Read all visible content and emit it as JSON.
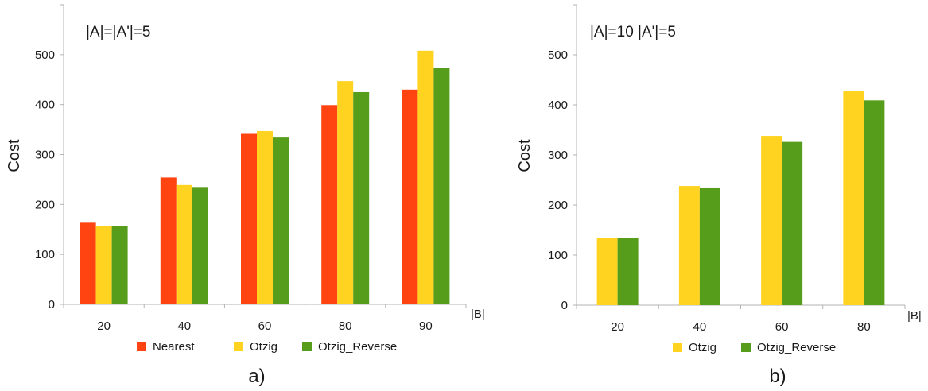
{
  "chart_data": [
    {
      "type": "bar",
      "annotation": "|A|=|A'|=5",
      "caption": "a)",
      "xlabel": "|B|",
      "ylabel": "Cost",
      "ylim": [
        0,
        600
      ],
      "yticks": [
        0,
        100,
        200,
        300,
        400,
        500
      ],
      "categories": [
        "20",
        "40",
        "60",
        "80",
        "90"
      ],
      "legend_position": "bottom",
      "grid": false,
      "series": [
        {
          "name": "Nearest",
          "color": "#ff4411",
          "values": [
            165,
            254,
            343,
            399,
            430
          ]
        },
        {
          "name": "Otzig",
          "color": "#ffd320",
          "values": [
            157,
            239,
            347,
            447,
            508
          ]
        },
        {
          "name": "Otzig_Reverse",
          "color": "#579d1c",
          "values": [
            157,
            235,
            334,
            425,
            474
          ]
        }
      ]
    },
    {
      "type": "bar",
      "annotation": "|A|=10  |A'|=5",
      "caption": "b)",
      "xlabel": "|B|",
      "ylabel": "Cost",
      "ylim": [
        0,
        600
      ],
      "yticks": [
        0,
        100,
        200,
        300,
        400,
        500
      ],
      "categories": [
        "20",
        "40",
        "60",
        "80"
      ],
      "legend_position": "bottom",
      "grid": false,
      "series": [
        {
          "name": "Otzig",
          "color": "#ffd320",
          "values": [
            134,
            238,
            338,
            428
          ]
        },
        {
          "name": "Otzig_Reverse",
          "color": "#579d1c",
          "values": [
            134,
            235,
            326,
            409
          ]
        }
      ]
    }
  ]
}
